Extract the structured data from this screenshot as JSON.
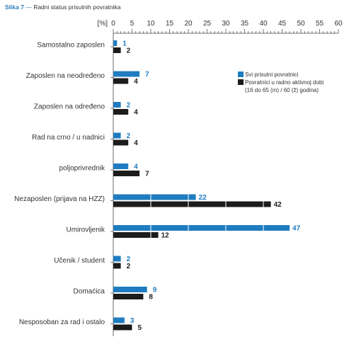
{
  "figure": {
    "label": "Slika 7",
    "separator": "—",
    "title": "Radni status prisutnih povratnika"
  },
  "chart_data": {
    "type": "bar",
    "orientation": "horizontal",
    "axis_unit_label": "[%]",
    "xlim": [
      0,
      60
    ],
    "xticks": [
      0,
      5,
      10,
      15,
      20,
      25,
      30,
      35,
      40,
      45,
      50,
      55,
      60
    ],
    "categories": [
      "Samostalno zaposlen",
      "Zaposlen na neodređeno",
      "Zaposlen na određeno",
      "Rad na crno / u nadnici",
      "poljoprivrednik",
      "Nezaposlen (prijava na HZZ)",
      "Umirovljenik",
      "Učenik / student",
      "Domaćica",
      "Nesposoban za rad i ostalo"
    ],
    "series": [
      {
        "name": "Svi prisutni povratnici",
        "color": "#1f7cc0",
        "label_color": "#1f7cc0",
        "values": [
          1,
          7,
          2,
          2,
          4,
          22,
          47,
          2,
          9,
          3
        ]
      },
      {
        "name": "Povratnici u radno aktivnoj dobi",
        "name_line2": "(16 do 65 (m) / 60 (ž) godina)",
        "color": "#1c1c1c",
        "label_color": "#1c1c1c",
        "values": [
          2,
          4,
          4,
          4,
          7,
          42,
          12,
          2,
          8,
          5
        ]
      }
    ],
    "grid": "white lines inside bars every 10 %",
    "legend_position": "right"
  }
}
